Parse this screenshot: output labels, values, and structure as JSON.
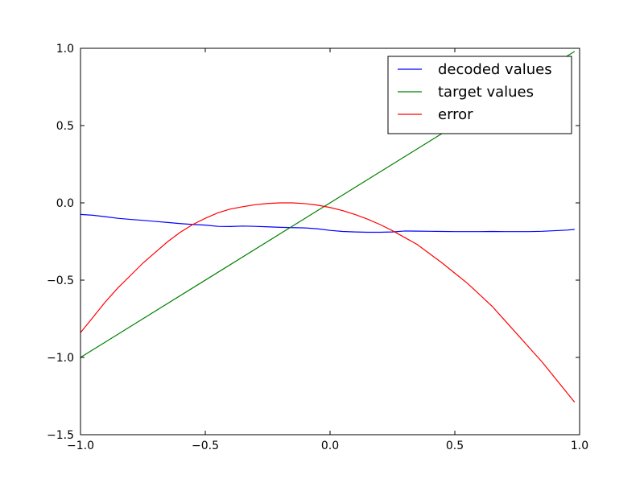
{
  "chart_data": {
    "type": "line",
    "title": "",
    "xlabel": "",
    "ylabel": "",
    "xlim": [
      -1.0,
      1.0
    ],
    "ylim": [
      -1.5,
      1.0
    ],
    "xticks": [
      -1.0,
      -0.5,
      0.0,
      0.5,
      1.0
    ],
    "xtick_labels": [
      "−1.0",
      "−0.5",
      "0.0",
      "0.5",
      "1.0"
    ],
    "yticks": [
      -1.5,
      -1.0,
      -0.5,
      0.0,
      0.5,
      1.0
    ],
    "ytick_labels": [
      "−1.5",
      "−1.0",
      "−0.5",
      "0.0",
      "0.5",
      "1.0"
    ],
    "grid": false,
    "legend_position": "top-right",
    "series": [
      {
        "name": "decoded values",
        "color": "#0000ff",
        "x": [
          -1.0,
          -0.95,
          -0.9,
          -0.85,
          -0.8,
          -0.75,
          -0.7,
          -0.65,
          -0.6,
          -0.55,
          -0.5,
          -0.45,
          -0.4,
          -0.35,
          -0.3,
          -0.25,
          -0.2,
          -0.15,
          -0.1,
          -0.05,
          0.0,
          0.05,
          0.1,
          0.15,
          0.2,
          0.25,
          0.3,
          0.35,
          0.4,
          0.45,
          0.5,
          0.55,
          0.6,
          0.65,
          0.7,
          0.75,
          0.8,
          0.85,
          0.9,
          0.95,
          0.98
        ],
        "y": [
          -0.075,
          -0.08,
          -0.09,
          -0.1,
          -0.107,
          -0.113,
          -0.12,
          -0.127,
          -0.134,
          -0.14,
          -0.144,
          -0.152,
          -0.153,
          -0.15,
          -0.152,
          -0.155,
          -0.158,
          -0.16,
          -0.162,
          -0.168,
          -0.178,
          -0.185,
          -0.188,
          -0.19,
          -0.19,
          -0.188,
          -0.182,
          -0.183,
          -0.184,
          -0.185,
          -0.186,
          -0.186,
          -0.186,
          -0.185,
          -0.186,
          -0.186,
          -0.186,
          -0.184,
          -0.18,
          -0.176,
          -0.172
        ]
      },
      {
        "name": "target values",
        "color": "#008000",
        "x": [
          -1.0,
          0.98
        ],
        "y": [
          -1.0,
          0.98
        ]
      },
      {
        "name": "error",
        "color": "#ff0000",
        "x": [
          -1.0,
          -0.95,
          -0.9,
          -0.85,
          -0.8,
          -0.75,
          -0.7,
          -0.65,
          -0.6,
          -0.55,
          -0.5,
          -0.45,
          -0.4,
          -0.35,
          -0.3,
          -0.25,
          -0.2,
          -0.15,
          -0.1,
          -0.05,
          0.0,
          0.05,
          0.1,
          0.15,
          0.2,
          0.25,
          0.3,
          0.35,
          0.4,
          0.45,
          0.5,
          0.55,
          0.6,
          0.65,
          0.7,
          0.75,
          0.8,
          0.85,
          0.9,
          0.95,
          0.98
        ],
        "y": [
          -0.84,
          -0.74,
          -0.64,
          -0.55,
          -0.47,
          -0.39,
          -0.32,
          -0.25,
          -0.19,
          -0.14,
          -0.1,
          -0.065,
          -0.04,
          -0.025,
          -0.012,
          -0.004,
          0.0,
          0.0,
          -0.005,
          -0.015,
          -0.03,
          -0.05,
          -0.075,
          -0.105,
          -0.14,
          -0.18,
          -0.225,
          -0.27,
          -0.33,
          -0.39,
          -0.455,
          -0.52,
          -0.595,
          -0.67,
          -0.76,
          -0.85,
          -0.94,
          -1.03,
          -1.13,
          -1.23,
          -1.29
        ]
      }
    ]
  }
}
